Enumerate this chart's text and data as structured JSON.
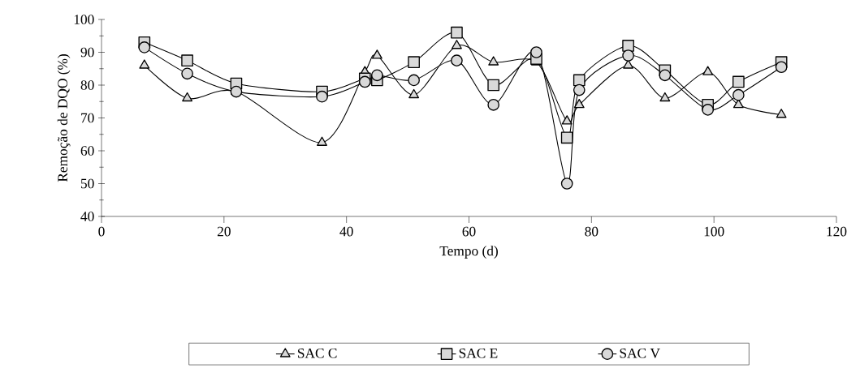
{
  "chart_data": {
    "type": "line",
    "xlabel": "Tempo (d)",
    "ylabel": "Remoção de DQO (%)",
    "xlim": [
      0,
      120
    ],
    "xticks": [
      0,
      20,
      40,
      60,
      80,
      100,
      120
    ],
    "ylim": [
      40,
      100
    ],
    "yticks": [
      40,
      50,
      60,
      70,
      80,
      90,
      100
    ],
    "legend": "bottom",
    "grid": false,
    "line_style": "solid",
    "series": [
      {
        "name": "SAC C",
        "color": "#d9d9d9",
        "marker": "triangle",
        "x": [
          7,
          14,
          22,
          36,
          43,
          45,
          51,
          58,
          64,
          71,
          76,
          78,
          86,
          92,
          99,
          104,
          111
        ],
        "values": [
          86,
          76,
          78,
          62.5,
          84,
          89,
          77,
          92,
          87,
          87,
          69,
          74,
          86,
          76,
          84,
          74,
          71
        ]
      },
      {
        "name": "SAC E",
        "color": "#d9d9d9",
        "marker": "square",
        "x": [
          7,
          14,
          22,
          36,
          43,
          45,
          51,
          58,
          64,
          71,
          76,
          78,
          86,
          92,
          99,
          104,
          111
        ],
        "values": [
          93,
          87.5,
          80.5,
          78,
          82,
          81.5,
          87,
          96,
          80,
          88,
          64,
          81.5,
          92,
          84.5,
          74,
          81,
          87
        ]
      },
      {
        "name": "SAC V",
        "color": "#d9d9d9",
        "marker": "circle",
        "x": [
          7,
          14,
          22,
          36,
          43,
          45,
          51,
          58,
          64,
          71,
          76,
          78,
          86,
          92,
          99,
          104,
          111
        ],
        "values": [
          91.5,
          83.5,
          78,
          76.5,
          81,
          83,
          81.5,
          87.5,
          74,
          90,
          50,
          78.5,
          89,
          83,
          72.5,
          77,
          85.5
        ]
      }
    ]
  }
}
